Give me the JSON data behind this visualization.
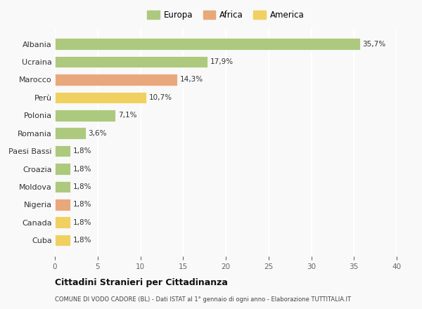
{
  "categories": [
    "Albania",
    "Ucraina",
    "Marocco",
    "Perù",
    "Polonia",
    "Romania",
    "Paesi Bassi",
    "Croazia",
    "Moldova",
    "Nigeria",
    "Canada",
    "Cuba"
  ],
  "values": [
    35.7,
    17.9,
    14.3,
    10.7,
    7.1,
    3.6,
    1.8,
    1.8,
    1.8,
    1.8,
    1.8,
    1.8
  ],
  "labels": [
    "35,7%",
    "17,9%",
    "14,3%",
    "10,7%",
    "7,1%",
    "3,6%",
    "1,8%",
    "1,8%",
    "1,8%",
    "1,8%",
    "1,8%",
    "1,8%"
  ],
  "continents": [
    "Europa",
    "Europa",
    "Africa",
    "America",
    "Europa",
    "Europa",
    "Europa",
    "Europa",
    "Europa",
    "Africa",
    "America",
    "America"
  ],
  "colors": {
    "Europa": "#adc97e",
    "Africa": "#e8a87c",
    "America": "#f0d060"
  },
  "xlim": [
    0,
    40
  ],
  "xticks": [
    0,
    5,
    10,
    15,
    20,
    25,
    30,
    35,
    40
  ],
  "title": "Cittadini Stranieri per Cittadinanza",
  "subtitle": "COMUNE DI VODO CADORE (BL) - Dati ISTAT al 1° gennaio di ogni anno - Elaborazione TUTTITALIA.IT",
  "background_color": "#f9f9f9",
  "grid_color": "#ffffff"
}
